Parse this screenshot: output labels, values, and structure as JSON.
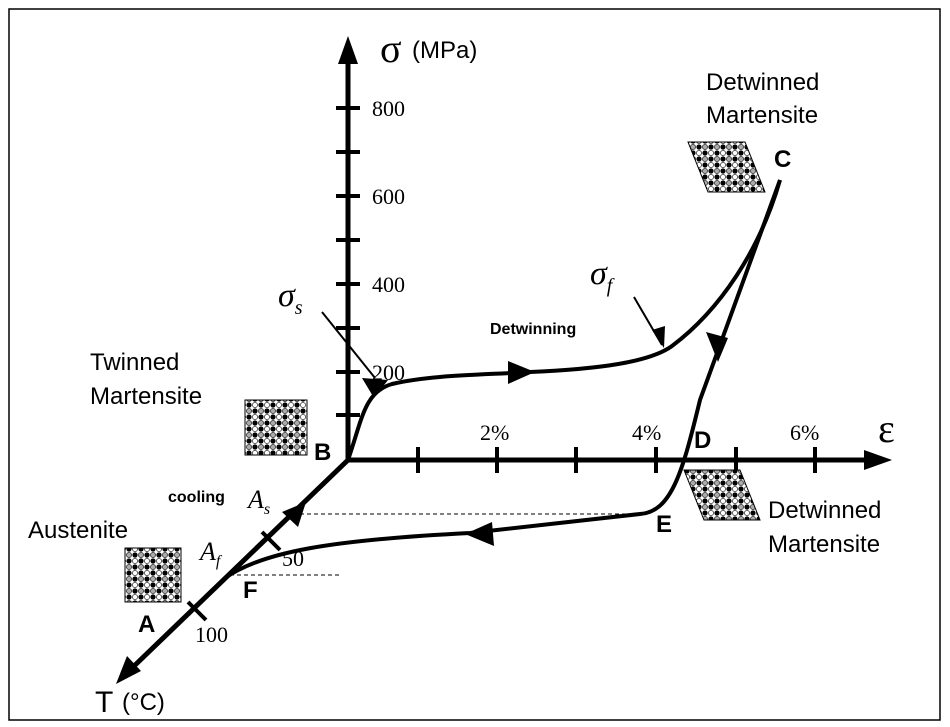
{
  "stress_axis": {
    "symbol": "σ",
    "unit": "(MPa)",
    "ticks": [
      "200",
      "400",
      "600",
      "800"
    ]
  },
  "strain_axis": {
    "symbol": "ε",
    "ticks": [
      "2%",
      "4%",
      "6%"
    ]
  },
  "temperature_axis": {
    "symbol": "T",
    "unit": "(°C)",
    "ticks": [
      "50",
      "100"
    ]
  },
  "points": {
    "A": "A",
    "B": "B",
    "C": "C",
    "D": "D",
    "E": "E",
    "F": "F"
  },
  "labels": {
    "sigma_s": {
      "symbol": "σ",
      "subscript": "s"
    },
    "sigma_f": {
      "symbol": "σ",
      "subscript": "f"
    },
    "A_s": {
      "symbol": "A",
      "subscript": "s"
    },
    "A_f": {
      "symbol": "A",
      "subscript": "f"
    },
    "detwinning": "Detwinning",
    "cooling": "cooling"
  },
  "phases": {
    "twinned_martensite": [
      "Twinned",
      "Martensite"
    ],
    "austenite": "Austenite",
    "detwinned_martensite_top": [
      "Detwinned",
      "Martensite"
    ],
    "detwinned_martensite_bottom": [
      "Detwinned",
      "Martensite"
    ]
  }
}
